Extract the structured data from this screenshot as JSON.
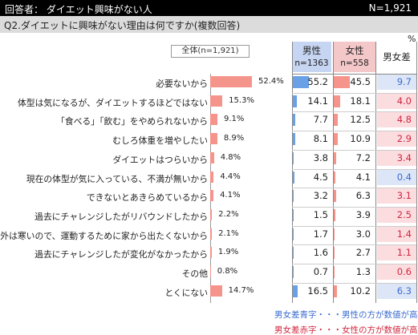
{
  "header": {
    "respondent_label": "回答者：  ダイエット興味がない人",
    "n_label": "N=1,921"
  },
  "question": "Q2.ダイエットに興味がない理由は何ですか(複数回答)",
  "percent_mark": "%",
  "columns": {
    "total_label": "全体(n=1,921)",
    "male_label": "男性",
    "male_n": "n=1363",
    "female_label": "女性",
    "female_n": "n=558",
    "diff_label": "男女差"
  },
  "notes": {
    "blue": "男女差青字・・・男性の方が数値が高い",
    "red": "男女差赤字・・・女性の方が数値が高い"
  },
  "colors": {
    "total_bar": "#f4948a",
    "male_bar": "#6aa0e6",
    "female_bar": "#f4948a",
    "male_higher_bg": "#dce6f6",
    "female_higher_bg": "#fbdde0",
    "male_higher_text": "#3b6cd0",
    "female_higher_text": "#d0263e"
  },
  "chart_data": {
    "type": "bar",
    "categories": [
      "必要ないから",
      "体型は気になるが、ダイエットするほどではない",
      "「食べる」「飲む」をやめられないから",
      "むしろ体重を増やしたい",
      "ダイエットはつらいから",
      "現在の体型が気に入っている、不満が無いから",
      "できないとあきらめているから",
      "過去にチャレンジしたがリバウンドしたから",
      "外は寒いので、運動するために家から出たくないから",
      "過去にチャレンジしたが変化がなかったから",
      "その他",
      "とくにない"
    ],
    "series": [
      {
        "name": "全体(n=1,921)",
        "values": [
          52.4,
          15.3,
          9.1,
          8.9,
          4.8,
          4.4,
          4.1,
          2.2,
          2.1,
          1.9,
          0.8,
          14.7
        ]
      },
      {
        "name": "男性",
        "values": [
          55.2,
          14.1,
          7.7,
          8.1,
          3.8,
          4.5,
          3.2,
          1.5,
          1.7,
          1.6,
          0.7,
          16.5
        ]
      },
      {
        "name": "女性",
        "values": [
          45.5,
          18.1,
          12.5,
          10.9,
          7.2,
          4.1,
          6.3,
          3.9,
          3.0,
          2.7,
          1.3,
          10.2
        ]
      },
      {
        "name": "男女差",
        "values": [
          9.7,
          4.0,
          4.8,
          2.9,
          3.4,
          0.4,
          3.1,
          2.5,
          1.4,
          1.1,
          0.6,
          6.3
        ]
      }
    ],
    "diff_higher": [
      "male",
      "female",
      "female",
      "female",
      "female",
      "male",
      "female",
      "female",
      "female",
      "female",
      "female",
      "male"
    ],
    "total_labels": [
      "52.4%",
      "15.3%",
      "9.1%",
      "8.9%",
      "4.8%",
      "4.4%",
      "4.1%",
      "2.2%",
      "2.1%",
      "1.9%",
      "0.8%",
      "14.7%"
    ],
    "male_labels": [
      "55.2",
      "14.1",
      "7.7",
      "8.1",
      "3.8",
      "4.5",
      "3.2",
      "1.5",
      "1.7",
      "1.6",
      "0.7",
      "16.5"
    ],
    "female_labels": [
      "45.5",
      "18.1",
      "12.5",
      "10.9",
      "7.2",
      "4.1",
      "6.3",
      "3.9",
      "3.0",
      "2.7",
      "1.3",
      "10.2"
    ],
    "diff_labels": [
      "9.7",
      "4.0",
      "4.8",
      "2.9",
      "3.4",
      "0.4",
      "3.1",
      "2.5",
      "1.4",
      "1.1",
      "0.6",
      "6.3"
    ]
  }
}
